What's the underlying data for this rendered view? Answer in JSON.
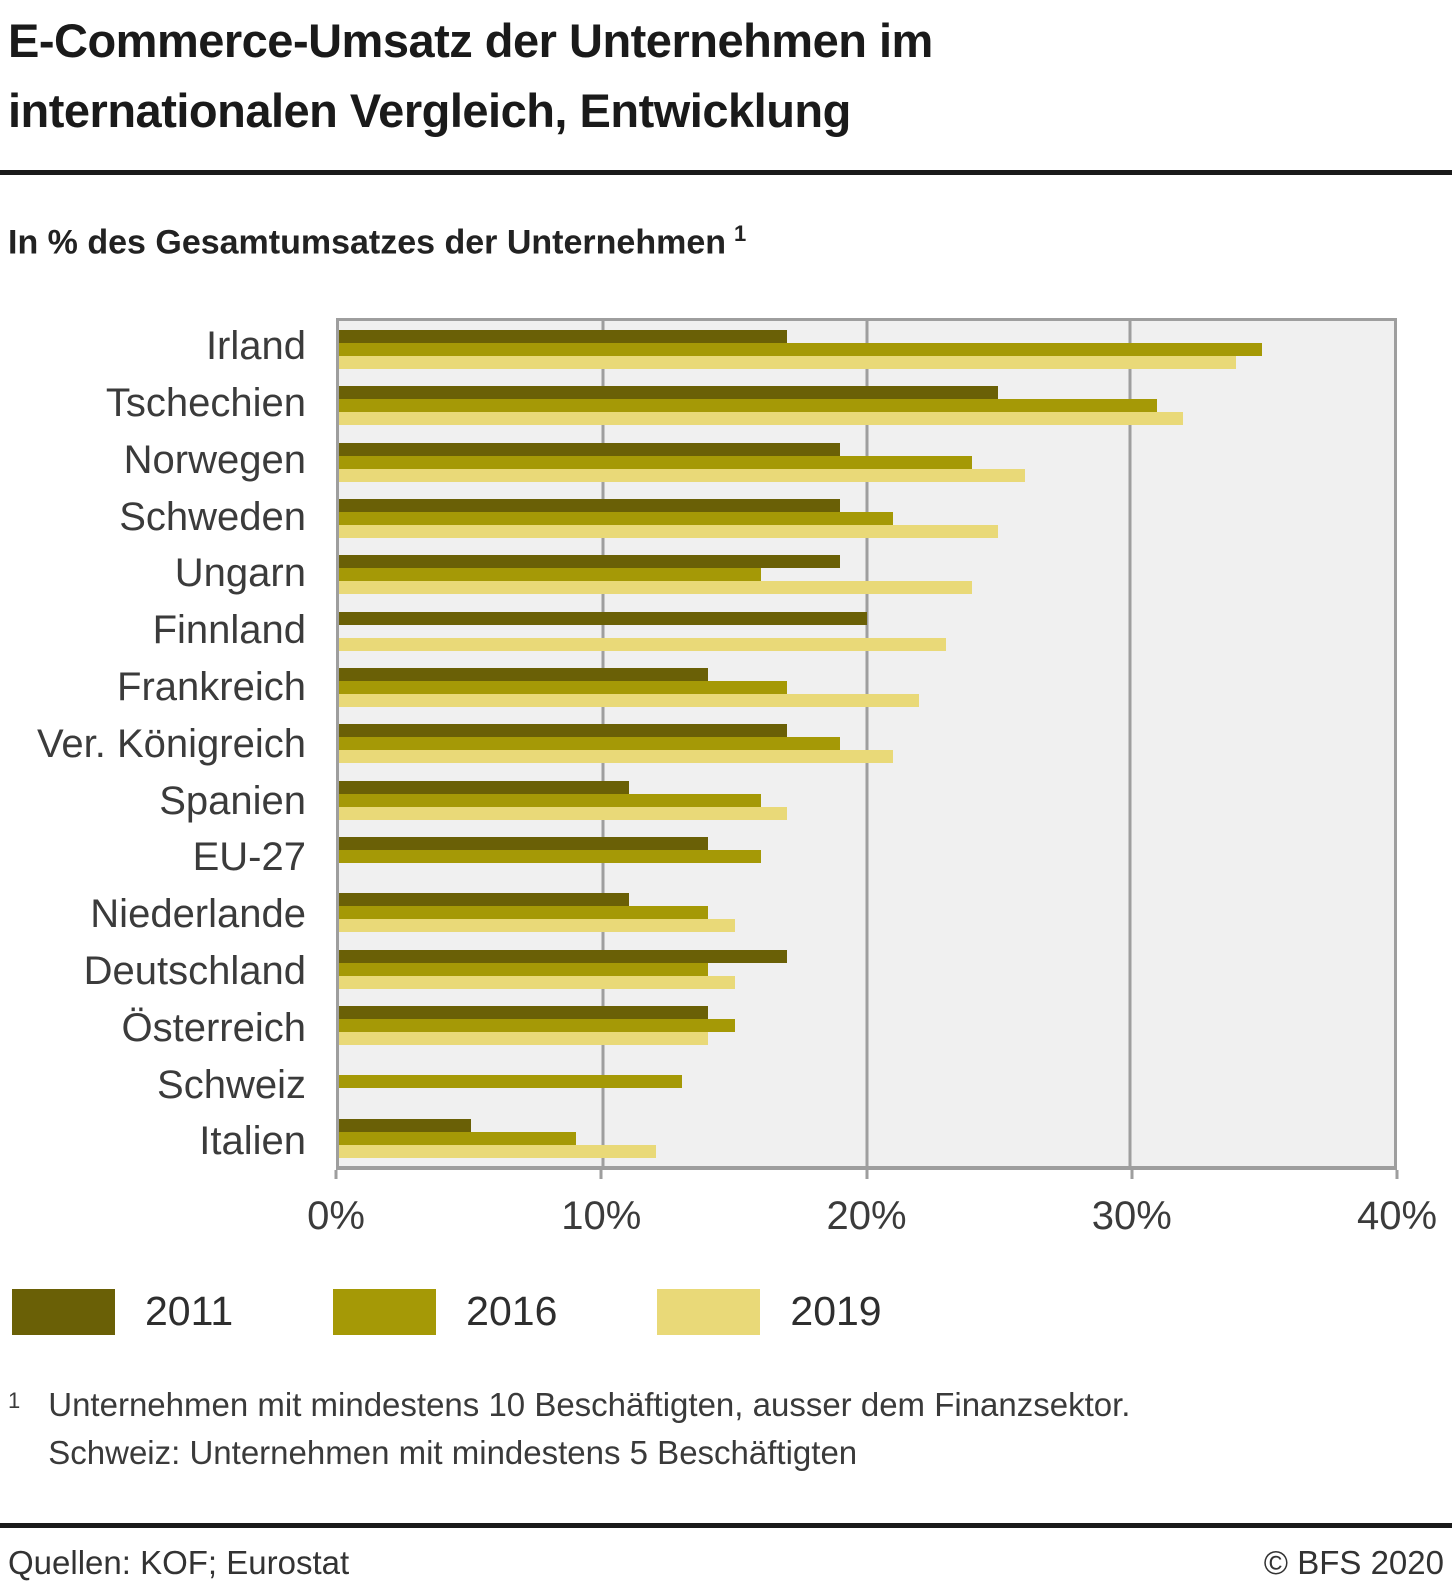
{
  "header": {
    "title_lines": [
      "E-Commerce-Umsatz der Unternehmen im",
      "internationalen Vergleich, Entwicklung"
    ],
    "subtitle": "In % des Gesamtumsatzes der Unternehmen",
    "subtitle_footnote_marker": "1"
  },
  "chart_data": {
    "type": "bar",
    "orientation": "horizontal",
    "title": "E-Commerce-Umsatz der Unternehmen im internationalen Vergleich, Entwicklung",
    "subtitle": "In % des Gesamtumsatzes der Unternehmen",
    "categories": [
      "Irland",
      "Tschechien",
      "Norwegen",
      "Schweden",
      "Ungarn",
      "Finnland",
      "Frankreich",
      "Ver. Königreich",
      "Spanien",
      "EU-27",
      "Niederlande",
      "Deutschland",
      "Österreich",
      "Schweiz",
      "Italien"
    ],
    "series": [
      {
        "name": "2011",
        "color": "#6a6006",
        "values": [
          17,
          25,
          19,
          19,
          19,
          20,
          14,
          17,
          11,
          14,
          11,
          17,
          14,
          null,
          5
        ]
      },
      {
        "name": "2016",
        "color": "#a59906",
        "values": [
          35,
          31,
          24,
          21,
          16,
          null,
          17,
          19,
          16,
          16,
          14,
          14,
          15,
          13,
          9
        ]
      },
      {
        "name": "2019",
        "color": "#e9d978",
        "values": [
          34,
          32,
          26,
          25,
          24,
          23,
          22,
          21,
          17,
          null,
          15,
          15,
          14,
          null,
          12
        ]
      }
    ],
    "xlim": [
      0,
      40
    ],
    "x_tick_labels": [
      "0%",
      "10%",
      "20%",
      "30%",
      "40%"
    ],
    "grid": "vertical",
    "plot_background": "#f0f0f0",
    "grid_color": "#9e9e9e",
    "legend_position": "bottom-left"
  },
  "footnote": {
    "marker": "1",
    "lines": [
      "Unternehmen mit mindestens 10 Beschäftigten, ausser dem Finanzsektor.",
      "Schweiz: Unternehmen mit mindestens 5 Beschäftigten"
    ]
  },
  "footer": {
    "source": "Quellen: KOF; Eurostat",
    "copyright": "© BFS 2020"
  }
}
